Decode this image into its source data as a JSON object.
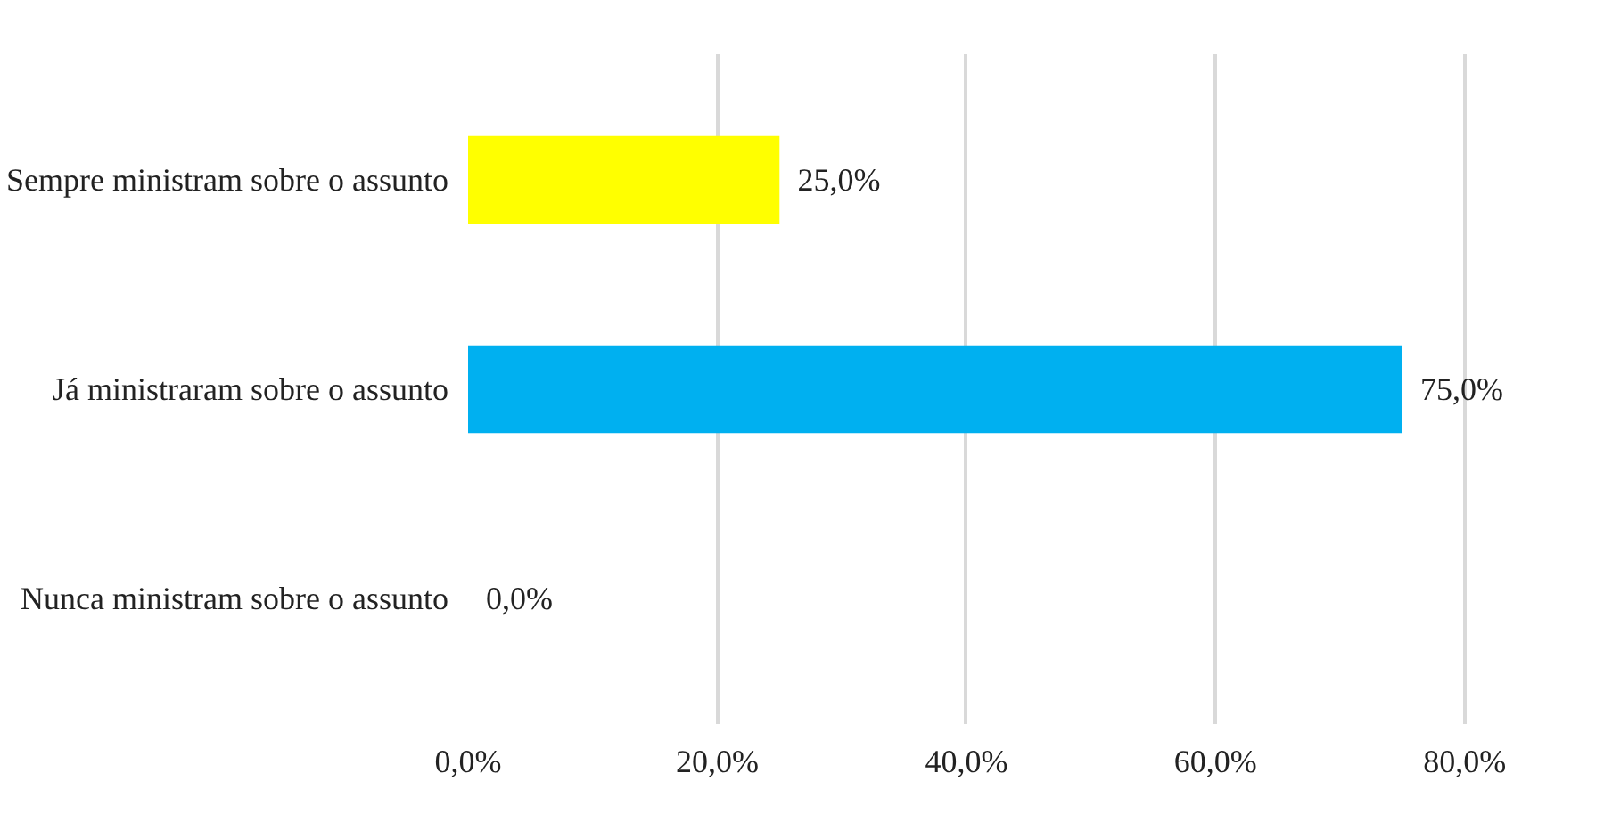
{
  "chart_data": {
    "type": "bar",
    "orientation": "horizontal",
    "categories": [
      "Sempre ministram sobre o assunto",
      "Já ministraram sobre o assunto",
      "Nunca ministram sobre o assunto"
    ],
    "values": [
      25.0,
      75.0,
      0.0
    ],
    "colors": [
      "#ffff00",
      "#00b0f0",
      "#4472c4"
    ],
    "value_labels": [
      "25,0%",
      "75,0%",
      "0,0%"
    ],
    "xlim": [
      0,
      80
    ],
    "xticks": [
      {
        "value": 0,
        "label": "0,0%"
      },
      {
        "value": 20,
        "label": "20,0%"
      },
      {
        "value": 40,
        "label": "40,0%"
      },
      {
        "value": 60,
        "label": "60,0%"
      },
      {
        "value": 80,
        "label": "80,0%"
      }
    ],
    "grid": "x"
  }
}
